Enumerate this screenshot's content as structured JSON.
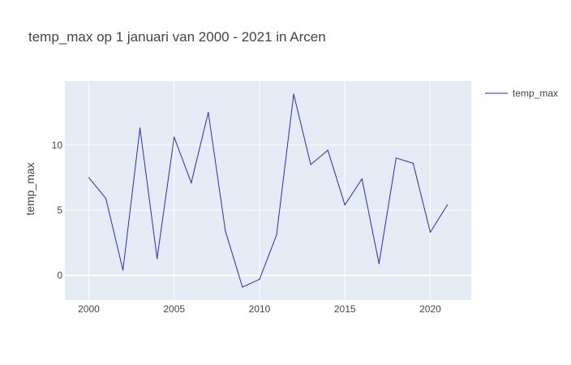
{
  "chart_data": {
    "type": "line",
    "title": "temp_max  op 1 januari van 2000 - 2021 in Arcen",
    "xlabel": "",
    "ylabel": "temp_max",
    "xlim": [
      1998.6,
      2022.4
    ],
    "ylim": [
      -1.9,
      14.9
    ],
    "x_ticks": [
      2000,
      2005,
      2010,
      2015,
      2020
    ],
    "y_ticks": [
      0,
      5,
      10
    ],
    "grid": true,
    "legend_position": "top-right",
    "colors": {
      "plot_bg": "#E5ECF6",
      "line": "#2630B8",
      "grid": "#ffffff"
    },
    "series": [
      {
        "name": "temp_max",
        "x": [
          2000,
          2001,
          2002,
          2003,
          2004,
          2005,
          2006,
          2007,
          2008,
          2009,
          2010,
          2011,
          2012,
          2013,
          2014,
          2015,
          2016,
          2017,
          2018,
          2019,
          2020,
          2021
        ],
        "y": [
          7.5,
          5.9,
          0.4,
          11.3,
          1.3,
          10.6,
          7.1,
          12.5,
          3.4,
          -0.9,
          -0.3,
          3.1,
          13.9,
          8.5,
          9.6,
          5.4,
          7.4,
          0.9,
          9.0,
          8.6,
          3.3,
          5.4
        ]
      }
    ]
  }
}
